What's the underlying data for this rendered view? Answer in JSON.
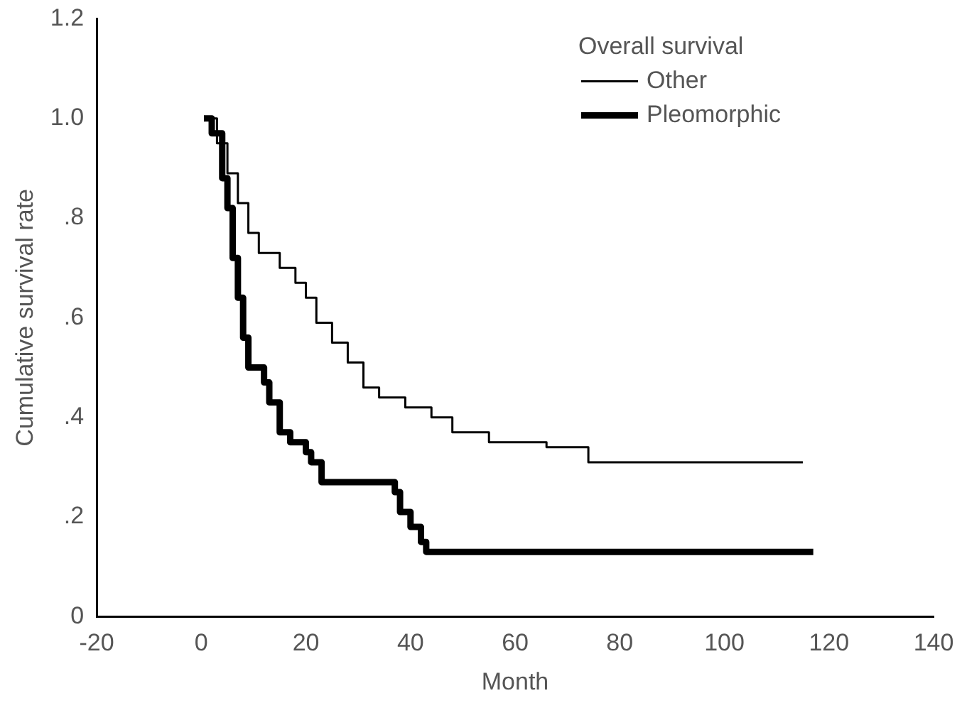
{
  "chart_data": {
    "type": "step",
    "xlabel": "Month",
    "ylabel": "Cumulative survival rate",
    "legend_title": "Overall survival",
    "legend": "top right",
    "grid": false,
    "xlim": [
      -20,
      140
    ],
    "xticks": [
      -20,
      0,
      20,
      40,
      60,
      80,
      100,
      120,
      140
    ],
    "ylim": [
      0,
      1.2
    ],
    "yticks": [
      {
        "value": 0,
        "label": "0"
      },
      {
        "value": 0.2,
        "label": ".2"
      },
      {
        "value": 0.4,
        "label": ".4"
      },
      {
        "value": 0.6,
        "label": ".6"
      },
      {
        "value": 0.8,
        "label": ".8"
      },
      {
        "value": 1,
        "label": "1.0"
      },
      {
        "value": 1.2,
        "label": "1.2"
      }
    ],
    "series": [
      {
        "name": "Other",
        "color": "#000000",
        "x": [
          0.5,
          3,
          5,
          7,
          9,
          11,
          15,
          18,
          20,
          22,
          25,
          28,
          31,
          34,
          39,
          44,
          48,
          55,
          66,
          74,
          115
        ],
        "values": [
          1.0,
          0.95,
          0.89,
          0.83,
          0.77,
          0.73,
          0.7,
          0.67,
          0.64,
          0.59,
          0.55,
          0.51,
          0.46,
          0.44,
          0.42,
          0.4,
          0.37,
          0.35,
          0.34,
          0.31,
          0.31
        ]
      },
      {
        "name": "Pleomorphic",
        "color": "#000000",
        "x": [
          0.5,
          2,
          4,
          5,
          6,
          7,
          8,
          9,
          12,
          13,
          15,
          17,
          20,
          21,
          23,
          37,
          38,
          40,
          42,
          43,
          117
        ],
        "values": [
          1.0,
          0.97,
          0.88,
          0.82,
          0.72,
          0.64,
          0.56,
          0.5,
          0.47,
          0.43,
          0.37,
          0.35,
          0.33,
          0.31,
          0.27,
          0.25,
          0.21,
          0.18,
          0.15,
          0.13,
          0.13
        ]
      }
    ]
  }
}
